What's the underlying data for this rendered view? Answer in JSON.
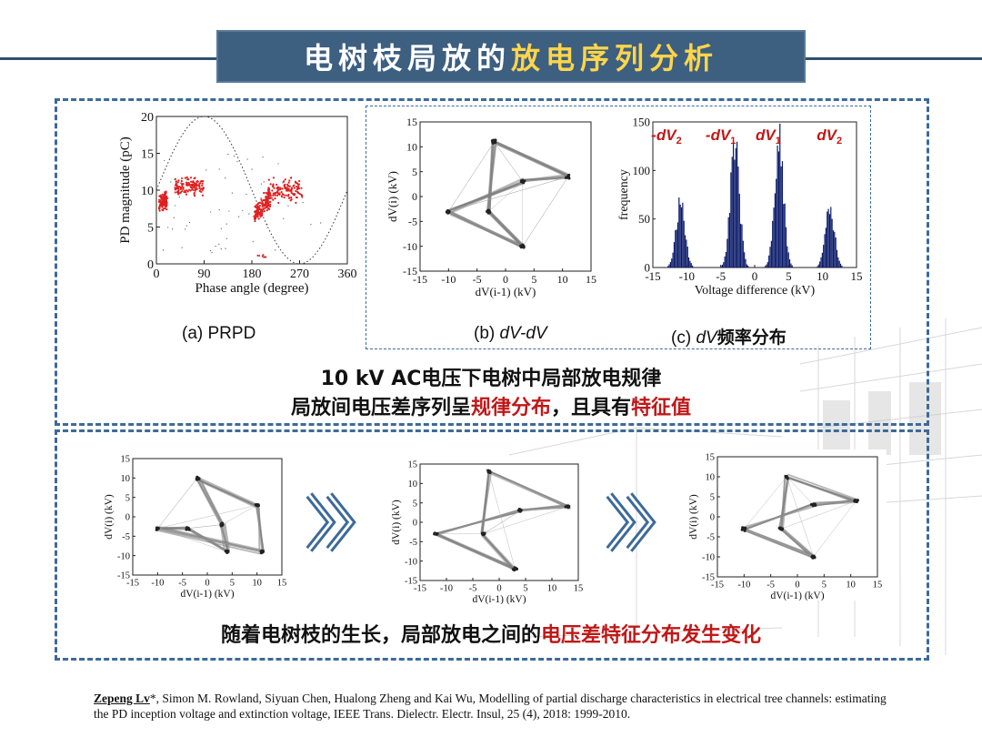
{
  "title": {
    "part1": "电树枝局放的",
    "part2": "放电序列分析"
  },
  "colors": {
    "title_bg": "#3d5f80",
    "title_highlight": "#ffd54a",
    "dash_border": "#3d6a99",
    "accent_red": "#c01818",
    "prpd_points": "#e02020",
    "histogram_bars": "#0a1a6a",
    "trace_gray": "#808080"
  },
  "top_panel": {
    "caption_a": "(a) PRPD",
    "caption_b_pre": "(b) ",
    "caption_b_ital": "dV-dV",
    "caption_c_pre": "(c) ",
    "caption_c_ital": "dV",
    "caption_c_post": "频率分布",
    "summary_line1": "10 kV AC电压下电树中局部放电规律",
    "summary_line2_pre": "局放间电压差序列呈",
    "summary_line2_red1": "规律分布",
    "summary_line2_mid": "，且具有",
    "summary_line2_red2": "特征值"
  },
  "bottom_panel": {
    "summary_pre": "随着电树枝的生长，局部放电之间的",
    "summary_red": "电压差特征分布发生变化"
  },
  "reference": {
    "first_author": "Zepeng Lv",
    "rest": "*, Simon M. Rowland, Siyuan Chen, Hualong Zheng and Kai Wu, Modelling of partial discharge characteristics in electrical tree channels: estimating the PD inception voltage and extinction voltage, IEEE Trans. Dielectr. Electr. Insul, 25 (4), 2018: 1999-2010."
  },
  "chart_data": [
    {
      "id": "prpd",
      "type": "scatter",
      "xlabel": "Phase angle (degree)",
      "ylabel": "PD magnitude (pC)",
      "xlim": [
        0,
        360
      ],
      "ylim": [
        0,
        20
      ],
      "xticks": [
        0,
        90,
        180,
        270,
        360
      ],
      "yticks": [
        0,
        5,
        10,
        15,
        20
      ],
      "reference_curve": "sine envelope (dotted), peak 20 at 90°, zero at 270°",
      "clusters": [
        {
          "x_range": [
            5,
            20
          ],
          "y_center": 8.5,
          "y_spread": 1.5
        },
        {
          "x_range": [
            35,
            90
          ],
          "y_center": 10.5,
          "y_spread": 1.5
        },
        {
          "x_range": [
            185,
            215
          ],
          "y_center": 6.5,
          "y_spread": 2.0
        },
        {
          "x_range": [
            210,
            275
          ],
          "y_center": 10.0,
          "y_spread": 2.0
        }
      ]
    },
    {
      "id": "dvdv_top",
      "type": "scatter",
      "xlabel": "dV(i-1)  (kV)",
      "ylabel": "dV(i)  (kV)",
      "xlim": [
        -15,
        15
      ],
      "ylim": [
        -15,
        15
      ],
      "xticks": [
        -15,
        -10,
        -5,
        0,
        5,
        10,
        15
      ],
      "yticks": [
        -15,
        -10,
        -5,
        0,
        5,
        10,
        15
      ],
      "nodes": [
        [
          -2,
          11
        ],
        [
          11,
          4
        ],
        [
          3,
          3
        ],
        [
          -10,
          -3
        ],
        [
          3,
          -10
        ],
        [
          -3,
          -3
        ]
      ]
    },
    {
      "id": "dv_hist",
      "type": "bar",
      "xlabel": "Voltage difference  (kV)",
      "ylabel": "frequency",
      "xlim": [
        -15,
        15
      ],
      "ylim": [
        0,
        150
      ],
      "xticks": [
        -15,
        -10,
        -5,
        0,
        5,
        10,
        15
      ],
      "yticks": [
        0,
        50,
        100,
        150
      ],
      "peak_labels": [
        "-dV2",
        "-dV1",
        "dV1",
        "dV2"
      ],
      "peaks": [
        {
          "center": -11,
          "height": 70
        },
        {
          "center": -3,
          "height": 135
        },
        {
          "center": 3.5,
          "height": 140
        },
        {
          "center": 11,
          "height": 65
        }
      ]
    },
    {
      "id": "dvdv_stage1",
      "type": "scatter",
      "xlabel": "dV(i-1)  (kV)",
      "ylabel": "dV(i)  (kV)",
      "xlim": [
        -15,
        15
      ],
      "ylim": [
        -15,
        15
      ],
      "xticks": [
        -15,
        -10,
        -5,
        0,
        5,
        10,
        15
      ],
      "yticks": [
        -15,
        -10,
        -5,
        0,
        5,
        10,
        15
      ],
      "nodes": [
        [
          -2,
          10
        ],
        [
          10,
          3
        ],
        [
          11,
          -9
        ],
        [
          -10,
          -3
        ],
        [
          -4,
          -3
        ],
        [
          4,
          -9
        ],
        [
          3,
          -2
        ]
      ]
    },
    {
      "id": "dvdv_stage2",
      "type": "scatter",
      "xlabel": "dV(i-1)  (kV)",
      "ylabel": "dV(i)  (kV)",
      "xlim": [
        -15,
        15
      ],
      "ylim": [
        -15,
        15
      ],
      "xticks": [
        -15,
        -10,
        -5,
        0,
        5,
        10,
        15
      ],
      "yticks": [
        -15,
        -10,
        -5,
        0,
        5,
        10,
        15
      ],
      "nodes": [
        [
          -2,
          13
        ],
        [
          13,
          4
        ],
        [
          4,
          3
        ],
        [
          -12,
          -3
        ],
        [
          3,
          -12
        ],
        [
          -3,
          -3
        ]
      ]
    },
    {
      "id": "dvdv_stage3",
      "type": "scatter",
      "xlabel": "dV(i-1)  (kV)",
      "ylabel": "dV(i)  (kV)",
      "xlim": [
        -15,
        15
      ],
      "ylim": [
        -15,
        15
      ],
      "xticks": [
        -15,
        -10,
        -5,
        0,
        5,
        10,
        15
      ],
      "yticks": [
        -15,
        -10,
        -5,
        0,
        5,
        10,
        15
      ],
      "nodes": [
        [
          -2,
          10
        ],
        [
          11,
          4
        ],
        [
          3,
          3
        ],
        [
          -10,
          -3
        ],
        [
          3,
          -10
        ],
        [
          -3,
          -3
        ]
      ]
    }
  ]
}
